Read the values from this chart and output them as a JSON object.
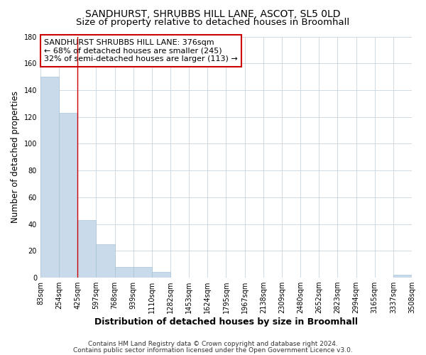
{
  "title": "SANDHURST, SHRUBBS HILL LANE, ASCOT, SL5 0LD",
  "subtitle": "Size of property relative to detached houses in Broomhall",
  "xlabel": "Distribution of detached houses by size in Broomhall",
  "ylabel": "Number of detached properties",
  "bar_values": [
    150,
    123,
    43,
    25,
    8,
    8,
    4,
    0,
    0,
    0,
    0,
    0,
    0,
    0,
    0,
    0,
    0,
    0,
    0,
    2
  ],
  "bin_labels": [
    "83sqm",
    "254sqm",
    "425sqm",
    "597sqm",
    "768sqm",
    "939sqm",
    "1110sqm",
    "1282sqm",
    "1453sqm",
    "1624sqm",
    "1795sqm",
    "1967sqm",
    "2138sqm",
    "2309sqm",
    "2480sqm",
    "2652sqm",
    "2823sqm",
    "2994sqm",
    "3165sqm",
    "3337sqm",
    "3508sqm"
  ],
  "bar_color": "#c9daea",
  "bar_edge_color": "#a8c4d8",
  "grid_color": "#c8d4de",
  "annotation_text_line1": "SANDHURST SHRUBBS HILL LANE: 376sqm",
  "annotation_text_line2": "← 68% of detached houses are smaller (245)",
  "annotation_text_line3": "32% of semi-detached houses are larger (113) →",
  "annotation_box_color": "#ffffff",
  "annotation_box_edge_color": "#cc0000",
  "ylim_max": 180,
  "yticks": [
    0,
    20,
    40,
    60,
    80,
    100,
    120,
    140,
    160,
    180
  ],
  "footer_line1": "Contains HM Land Registry data © Crown copyright and database right 2024.",
  "footer_line2": "Contains public sector information licensed under the Open Government Licence v3.0.",
  "bg_color": "#ffffff",
  "plot_bg_color": "#ffffff",
  "title_fontsize": 10,
  "subtitle_fontsize": 9.5,
  "tick_fontsize": 7,
  "ylabel_fontsize": 8.5,
  "xlabel_fontsize": 9,
  "annotation_fontsize": 8,
  "footer_fontsize": 6.5
}
